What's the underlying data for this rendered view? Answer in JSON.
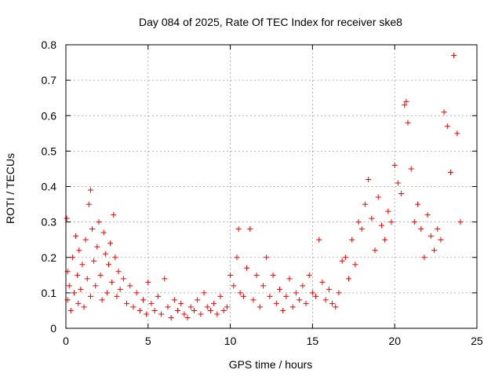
{
  "chart_data": {
    "type": "scatter",
    "title": "Day 084 of 2025, Rate Of TEC Index for receiver ske8",
    "xlabel": "GPS time / hours",
    "ylabel": "ROTI / TECUs",
    "xlim": [
      0,
      25
    ],
    "ylim": [
      0,
      0.8
    ],
    "xticks": [
      0,
      5,
      10,
      15,
      20,
      25
    ],
    "yticks": [
      0,
      0.1,
      0.2,
      0.3,
      0.4,
      0.5,
      0.6,
      0.7,
      0.8
    ],
    "xtick_labels": [
      "0",
      "5",
      "10",
      "15",
      "20",
      "25"
    ],
    "ytick_labels": [
      "0",
      "0.1",
      "0.2",
      "0.3",
      "0.4",
      "0.5",
      "0.6",
      "0.7",
      "0.8"
    ],
    "grid": true,
    "marker": "+",
    "color": "#ff0000",
    "series": [
      {
        "name": "ROTI",
        "x": [
          0.05,
          0.1,
          0.1,
          0.2,
          0.3,
          0.4,
          0.5,
          0.6,
          0.7,
          0.75,
          0.8,
          0.9,
          1.0,
          1.1,
          1.2,
          1.3,
          1.4,
          1.5,
          1.5,
          1.6,
          1.7,
          1.8,
          1.9,
          2.0,
          2.1,
          2.2,
          2.3,
          2.4,
          2.5,
          2.6,
          2.7,
          2.8,
          2.9,
          3.0,
          3.1,
          3.2,
          3.3,
          3.5,
          3.7,
          3.9,
          4.1,
          4.3,
          4.5,
          4.7,
          4.9,
          5.0,
          5.2,
          5.4,
          5.6,
          5.8,
          6.0,
          6.2,
          6.4,
          6.6,
          6.8,
          7.0,
          7.2,
          7.4,
          7.6,
          7.8,
          8.0,
          8.2,
          8.4,
          8.6,
          8.8,
          9.0,
          9.2,
          9.4,
          9.6,
          9.8,
          10.0,
          10.2,
          10.4,
          10.5,
          10.6,
          10.8,
          11.0,
          11.2,
          11.4,
          11.6,
          11.8,
          12.0,
          12.2,
          12.4,
          12.6,
          12.8,
          13.0,
          13.2,
          13.4,
          13.6,
          13.8,
          14.0,
          14.2,
          14.4,
          14.6,
          14.8,
          15.0,
          15.2,
          15.4,
          15.6,
          15.8,
          16.0,
          16.2,
          16.4,
          16.6,
          16.8,
          17.0,
          17.2,
          17.4,
          17.6,
          17.8,
          18.0,
          18.2,
          18.4,
          18.6,
          18.8,
          19.0,
          19.2,
          19.4,
          19.6,
          19.8,
          20.0,
          20.2,
          20.4,
          20.6,
          20.7,
          20.8,
          21.0,
          21.2,
          21.4,
          21.6,
          21.8,
          22.0,
          22.2,
          22.4,
          22.6,
          22.8,
          23.0,
          23.2,
          23.4,
          23.6,
          23.8,
          24.0
        ],
        "y": [
          0.31,
          0.16,
          0.08,
          0.12,
          0.05,
          0.2,
          0.1,
          0.26,
          0.15,
          0.07,
          0.22,
          0.11,
          0.18,
          0.06,
          0.25,
          0.14,
          0.35,
          0.39,
          0.09,
          0.28,
          0.19,
          0.12,
          0.23,
          0.3,
          0.15,
          0.08,
          0.27,
          0.21,
          0.1,
          0.18,
          0.24,
          0.13,
          0.32,
          0.2,
          0.09,
          0.16,
          0.11,
          0.14,
          0.07,
          0.12,
          0.06,
          0.1,
          0.05,
          0.08,
          0.04,
          0.13,
          0.07,
          0.05,
          0.09,
          0.04,
          0.14,
          0.06,
          0.03,
          0.08,
          0.05,
          0.07,
          0.04,
          0.03,
          0.06,
          0.05,
          0.08,
          0.04,
          0.1,
          0.06,
          0.05,
          0.07,
          0.04,
          0.09,
          0.05,
          0.06,
          0.15,
          0.12,
          0.2,
          0.28,
          0.1,
          0.09,
          0.17,
          0.28,
          0.08,
          0.15,
          0.06,
          0.12,
          0.2,
          0.09,
          0.15,
          0.07,
          0.11,
          0.05,
          0.09,
          0.14,
          0.06,
          0.1,
          0.08,
          0.12,
          0.07,
          0.15,
          0.1,
          0.09,
          0.25,
          0.13,
          0.08,
          0.11,
          0.07,
          0.06,
          0.1,
          0.19,
          0.2,
          0.14,
          0.25,
          0.18,
          0.3,
          0.28,
          0.35,
          0.42,
          0.31,
          0.22,
          0.37,
          0.29,
          0.25,
          0.33,
          0.3,
          0.46,
          0.41,
          0.38,
          0.63,
          0.64,
          0.58,
          0.45,
          0.3,
          0.35,
          0.28,
          0.2,
          0.32,
          0.26,
          0.22,
          0.28,
          0.25,
          0.61,
          0.57,
          0.44,
          0.77,
          0.55,
          0.3
        ]
      }
    ]
  }
}
